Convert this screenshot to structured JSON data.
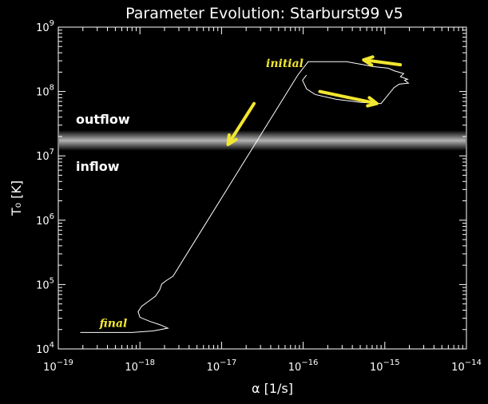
{
  "chart_data": {
    "type": "line",
    "title": "Parameter Evolution: Starburst99 v5",
    "xlabel": "α  [1/s]",
    "ylabel": "T₀  [K]",
    "xscale": "log",
    "yscale": "log",
    "xlim": [
      1e-19,
      1e-14
    ],
    "ylim": [
      10000.0,
      1000000000.0
    ],
    "x_ticks": [
      {
        "value": 1e-19,
        "base": "10",
        "exp": "−19"
      },
      {
        "value": 1e-18,
        "base": "10",
        "exp": "−18"
      },
      {
        "value": 1e-17,
        "base": "10",
        "exp": "−17"
      },
      {
        "value": 1e-16,
        "base": "10",
        "exp": "−16"
      },
      {
        "value": 1e-15,
        "base": "10",
        "exp": "−15"
      },
      {
        "value": 1e-14,
        "base": "10",
        "exp": "−14"
      }
    ],
    "y_ticks": [
      {
        "value": 10000.0,
        "base": "10",
        "exp": "4"
      },
      {
        "value": 100000.0,
        "base": "10",
        "exp": "5"
      },
      {
        "value": 1000000.0,
        "base": "10",
        "exp": "6"
      },
      {
        "value": 10000000.0,
        "base": "10",
        "exp": "7"
      },
      {
        "value": 100000000.0,
        "base": "10",
        "exp": "8"
      },
      {
        "value": 1000000000.0,
        "base": "10",
        "exp": "9"
      }
    ],
    "band": {
      "y_low": 12000000.0,
      "y_high": 25000000.0,
      "label_above": "outflow",
      "label_below": "inflow"
    },
    "series": [
      {
        "points": [
          [
            1.86e-19,
            18000.0
          ],
          [
            4.2e-19,
            18000.0
          ],
          [
            8e-19,
            18000.0
          ],
          [
            1.45e-18,
            19000.0
          ],
          [
            2.2e-18,
            21000.0
          ],
          [
            1.8e-18,
            23500.0
          ],
          [
            1.3e-18,
            27000.0
          ],
          [
            1e-18,
            31000.0
          ],
          [
            9.5e-19,
            38000.0
          ],
          [
            1.05e-18,
            46000.0
          ],
          [
            1.25e-18,
            54000.0
          ],
          [
            1.55e-18,
            66000.0
          ],
          [
            1.75e-18,
            83000.0
          ],
          [
            1.85e-18,
            102000.0
          ],
          [
            2.1e-18,
            115000.0
          ],
          [
            2.55e-18,
            135000.0
          ],
          [
            8.6e-17,
            180000000.0
          ],
          [
            1.15e-16,
            290000000.0
          ],
          [
            3.4e-16,
            290000000.0
          ],
          [
            5.6e-16,
            260000000.0
          ],
          [
            7e-16,
            245000000.0
          ],
          [
            1.1e-15,
            230000000.0
          ],
          [
            1.3e-15,
            210000000.0
          ],
          [
            1.7e-15,
            190000000.0
          ],
          [
            1.55e-15,
            170000000.0
          ],
          [
            1.9e-15,
            155000000.0
          ],
          [
            1.75e-15,
            150000000.0
          ],
          [
            1.95e-15,
            135000000.0
          ],
          [
            1.5e-15,
            130000000.0
          ],
          [
            1.3e-15,
            115000000.0
          ],
          [
            9e-16,
            65000000.0
          ],
          [
            5e-16,
            68000000.0
          ],
          [
            2.5e-16,
            76000000.0
          ],
          [
            1.4e-16,
            90000000.0
          ],
          [
            1.1e-16,
            110000000.0
          ],
          [
            9.8e-17,
            150000000.0
          ],
          [
            1.1e-16,
            180000000.0
          ]
        ]
      }
    ],
    "annotations": [
      {
        "text": "initial",
        "x": 3.5e-17,
        "y": 240000000.0
      },
      {
        "text": "final",
        "x": 3.2e-19,
        "y": 22000.0
      }
    ],
    "arrows": [
      {
        "from": [
          1.55e-15,
          260000000.0
        ],
        "to": [
          5.5e-16,
          310000000.0
        ]
      },
      {
        "from": [
          1.6e-16,
          100000000.0
        ],
        "to": [
          8e-16,
          65000000.0
        ]
      },
      {
        "from": [
          2.5e-17,
          65000000.0
        ],
        "to": [
          1.2e-17,
          15000000.0
        ]
      }
    ],
    "colors": {
      "background": "#000000",
      "axes": "#ffffff",
      "line": "#ffffff",
      "arrows": "#f2e630",
      "band": "#b4b4b4"
    },
    "grid": false
  }
}
